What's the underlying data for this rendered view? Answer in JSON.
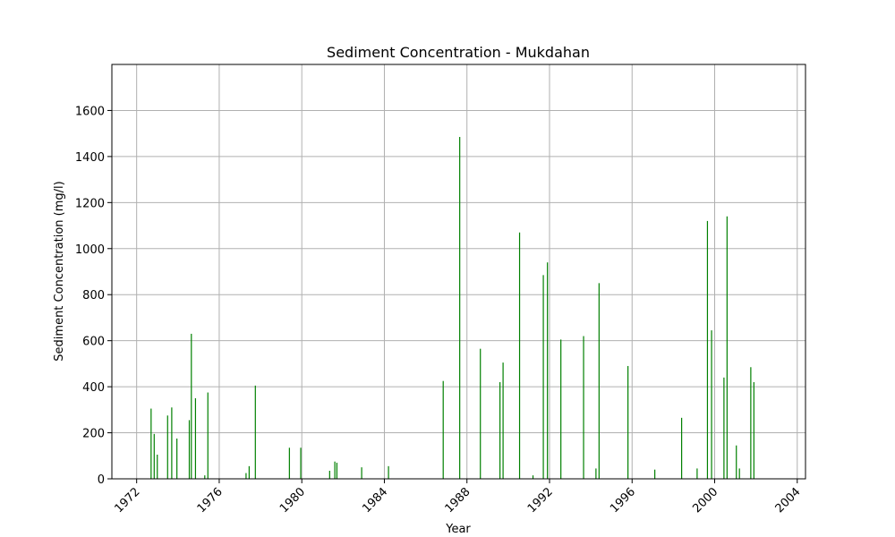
{
  "chart_data": {
    "type": "bar",
    "title": "Sediment Concentration - Mukdahan",
    "xlabel": "Year",
    "ylabel": "Sediment Concentration (mg/l)",
    "xlim": [
      1970.8,
      2004.4
    ],
    "ylim": [
      0,
      1800
    ],
    "x_ticks": [
      1972,
      1976,
      1980,
      1984,
      1988,
      1992,
      1996,
      2000,
      2004
    ],
    "x_tick_labels": [
      "1972",
      "1976",
      "1980",
      "1984",
      "1988",
      "1992",
      "1996",
      "2000",
      "2004"
    ],
    "y_ticks": [
      0,
      200,
      400,
      600,
      800,
      1000,
      1200,
      1400,
      1600
    ],
    "y_tick_labels": [
      "0",
      "200",
      "400",
      "600",
      "800",
      "1000",
      "1200",
      "1400",
      "1600"
    ],
    "grid": true,
    "bar_color": "#008000",
    "x": [
      1972.7,
      1972.85,
      1973.0,
      1973.5,
      1973.7,
      1973.95,
      1974.55,
      1974.65,
      1974.85,
      1975.3,
      1975.45,
      1977.3,
      1977.45,
      1977.75,
      1979.4,
      1979.95,
      1981.35,
      1981.6,
      1981.7,
      1982.9,
      1984.2,
      1986.85,
      1987.65,
      1988.65,
      1989.6,
      1989.75,
      1990.55,
      1991.2,
      1991.7,
      1991.9,
      1992.55,
      1993.65,
      1994.25,
      1994.4,
      1995.8,
      1997.1,
      1998.4,
      1999.15,
      1999.65,
      1999.85,
      2000.45,
      2000.6,
      2001.05,
      2001.2,
      2001.75,
      2001.9
    ],
    "values": [
      305,
      195,
      105,
      275,
      310,
      175,
      255,
      630,
      350,
      15,
      375,
      25,
      55,
      405,
      135,
      135,
      35,
      75,
      70,
      50,
      55,
      425,
      1485,
      565,
      420,
      505,
      1070,
      15,
      885,
      940,
      605,
      620,
      45,
      850,
      490,
      40,
      265,
      45,
      1120,
      645,
      440,
      1140,
      145,
      45,
      485,
      420
    ]
  }
}
